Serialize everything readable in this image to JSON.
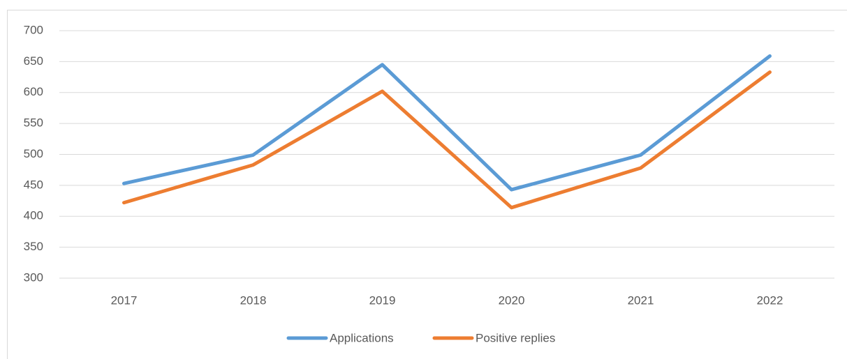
{
  "chart_data": {
    "type": "line",
    "categories": [
      "2017",
      "2018",
      "2019",
      "2020",
      "2021",
      "2022"
    ],
    "series": [
      {
        "name": "Applications",
        "color": "#5b9bd5",
        "values": [
          453,
          499,
          645,
          443,
          499,
          659
        ]
      },
      {
        "name": "Positive replies",
        "color": "#ed7d31",
        "values": [
          422,
          483,
          602,
          414,
          478,
          633
        ]
      }
    ],
    "ylim": [
      300,
      700
    ],
    "yticks": [
      300,
      350,
      400,
      450,
      500,
      550,
      600,
      650,
      700
    ],
    "grid": true,
    "legend": "bottom"
  }
}
